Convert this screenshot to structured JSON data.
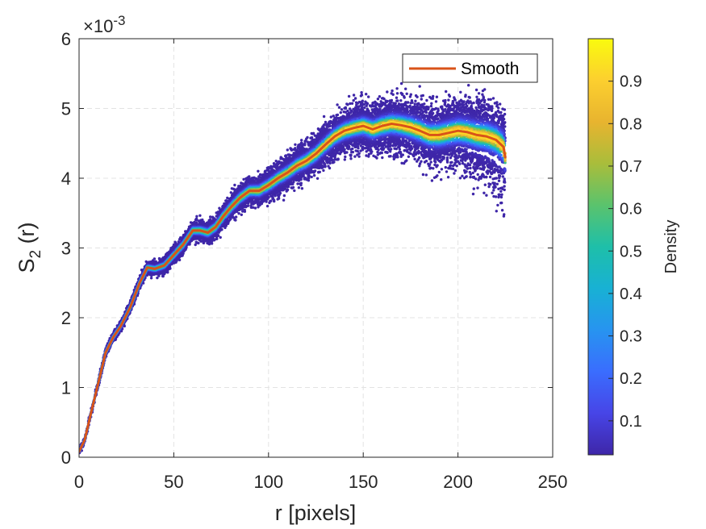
{
  "chart_data": {
    "type": "scatter",
    "title": "",
    "xlabel": "r [pixels]",
    "ylabel_main": "S",
    "ylabel_sub": "2",
    "ylabel_tail": " (r)",
    "xlim": [
      0,
      250
    ],
    "ylim": [
      0,
      6
    ],
    "y_scale_exponent_base": "×10",
    "y_scale_exponent_power": "-3",
    "x_ticks": [
      0,
      50,
      100,
      150,
      200,
      250
    ],
    "x_tick_labels": [
      "0",
      "50",
      "100",
      "150",
      "200",
      "250"
    ],
    "y_ticks": [
      0,
      1,
      2,
      3,
      4,
      5,
      6
    ],
    "y_tick_labels": [
      "0",
      "1",
      "2",
      "3",
      "4",
      "5",
      "6"
    ],
    "grid": true,
    "legend": {
      "position": "top-right",
      "entries": [
        {
          "label": "Smooth",
          "color": "#d95319"
        }
      ]
    },
    "colorbar": {
      "label": "Density",
      "range": [
        0.02,
        1.0
      ],
      "ticks": [
        0.1,
        0.2,
        0.3,
        0.4,
        0.5,
        0.6,
        0.7,
        0.8,
        0.9
      ],
      "tick_labels": [
        "0.1",
        "0.2",
        "0.3",
        "0.4",
        "0.5",
        "0.6",
        "0.7",
        "0.8",
        "0.9"
      ],
      "colormap": [
        "#3e26a8",
        "#4745e7",
        "#3a6dfe",
        "#2794f0",
        "#18b1d4",
        "#1ebfa9",
        "#5ac36d",
        "#a9bd3b",
        "#e8b42f",
        "#fccf2f",
        "#f9fb0e"
      ]
    },
    "series": [
      {
        "name": "Smooth",
        "type": "line",
        "color": "#d95319",
        "x": [
          0,
          3,
          6,
          10,
          14,
          18,
          22,
          27,
          32,
          36,
          40,
          45,
          50,
          55,
          60,
          64,
          68,
          72,
          76,
          80,
          85,
          90,
          95,
          100,
          105,
          110,
          115,
          120,
          125,
          130,
          135,
          140,
          145,
          150,
          155,
          160,
          165,
          170,
          175,
          180,
          185,
          190,
          195,
          200,
          205,
          210,
          215,
          220,
          224,
          225
        ],
        "y": [
          0.08,
          0.25,
          0.6,
          1.05,
          1.5,
          1.72,
          1.88,
          2.15,
          2.5,
          2.72,
          2.7,
          2.75,
          2.9,
          3.05,
          3.25,
          3.25,
          3.22,
          3.3,
          3.45,
          3.58,
          3.72,
          3.82,
          3.82,
          3.9,
          4.0,
          4.08,
          4.18,
          4.25,
          4.35,
          4.48,
          4.6,
          4.68,
          4.72,
          4.75,
          4.7,
          4.75,
          4.78,
          4.76,
          4.73,
          4.68,
          4.62,
          4.62,
          4.65,
          4.68,
          4.66,
          4.62,
          4.6,
          4.55,
          4.45,
          4.3
        ]
      },
      {
        "name": "Density scatter",
        "type": "scatter",
        "x_range": [
          0,
          225
        ],
        "y_follows": "Smooth",
        "spread_min": 0.05,
        "spread_max": 0.6,
        "density_max": 0.95
      }
    ]
  }
}
